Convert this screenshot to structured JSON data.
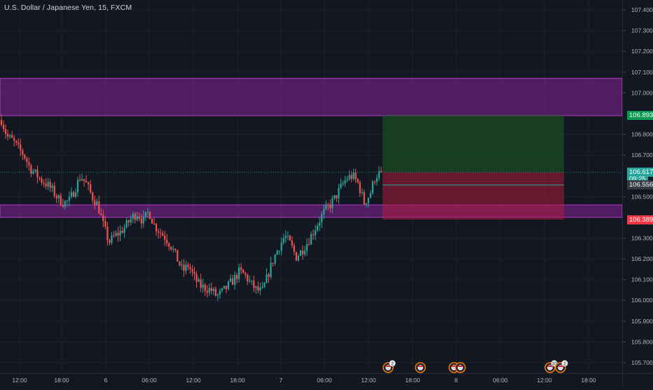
{
  "chart_data": {
    "type": "candlestick",
    "title": "U.S. Dollar / Japanese Yen, 15, FXCM",
    "yticks": [
      "107.400",
      "107.300",
      "107.200",
      "107.100",
      "107.000",
      "106.800",
      "106.700",
      "106.500",
      "106.300",
      "106.200",
      "106.100",
      "106.000",
      "105.900",
      "105.800",
      "105.700"
    ],
    "ylim": [
      105.68,
      107.43
    ],
    "xticks": [
      "12:00",
      "18:00",
      "6",
      "06:00",
      "12:00",
      "18:00",
      "7",
      "06:00",
      "12:00",
      "18:00",
      "8",
      "06:00",
      "12:00",
      "18:00"
    ],
    "price_tags": [
      {
        "label": "106.893",
        "price": 106.893,
        "color": "#26a69a",
        "bg": "#089950"
      },
      {
        "label": "106.617",
        "price": 106.617,
        "color": "#26a69a",
        "bg": "#26a69a"
      },
      {
        "label": "09:25",
        "price": 106.585,
        "color": "#26a69a",
        "bg": "#26a69a"
      },
      {
        "label": "106.556",
        "price": 106.556,
        "color": "#363a45",
        "bg": "#363a45"
      },
      {
        "label": "106.389",
        "price": 106.389,
        "color": "#f23645",
        "bg": "#f23645"
      }
    ],
    "zones": [
      {
        "name": "resistance",
        "top": 107.07,
        "bottom": 106.89,
        "color": "#9c27b0"
      },
      {
        "name": "support",
        "top": 106.46,
        "bottom": 106.4,
        "color": "#9c27b0"
      }
    ],
    "position": {
      "type": "long",
      "entry": 106.617,
      "target": 106.893,
      "stop": 106.389
    },
    "current_price": 106.617,
    "price_marker": "106.617",
    "event_markers": [
      {
        "label": "2"
      },
      {
        "label": ""
      },
      {
        "label": ""
      },
      {
        "label": "10"
      },
      {
        "label": "2"
      }
    ],
    "ohlc_path": [
      106.87,
      106.79,
      106.77,
      106.73,
      106.7,
      106.64,
      106.61,
      106.58,
      106.56,
      106.53,
      106.49,
      106.47,
      106.48,
      106.54,
      106.6,
      106.56,
      106.5,
      106.46,
      106.36,
      106.28,
      106.31,
      106.33,
      106.36,
      106.4,
      106.42,
      106.38,
      106.43,
      106.36,
      106.33,
      106.3,
      106.26,
      106.2,
      106.14,
      106.17,
      106.11,
      106.07,
      106.06,
      106.05,
      106.02,
      106.04,
      106.07,
      106.1,
      106.14,
      106.12,
      106.08,
      106.05,
      106.04,
      106.12,
      106.2,
      106.26,
      106.31,
      106.27,
      106.21,
      106.24,
      106.28,
      106.33,
      106.38,
      106.43,
      106.46,
      106.5,
      106.55,
      106.59,
      106.6,
      106.56,
      106.47,
      106.51,
      106.6,
      106.617
    ]
  },
  "colors": {
    "up": "#26a69a",
    "down": "#ef5350",
    "bg": "#131722"
  }
}
